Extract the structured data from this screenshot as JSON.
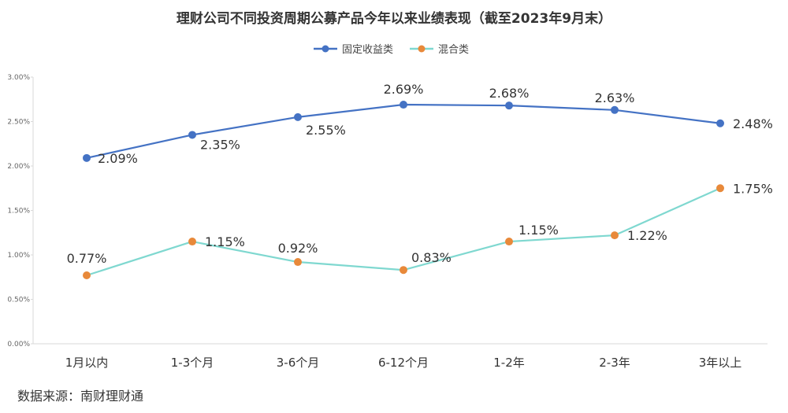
{
  "chart_data": {
    "type": "line",
    "title": "理财公司不同投资周期公募产品今年以来业绩表现（截至2023年9月末）",
    "categories": [
      "1月以内",
      "1-3个月",
      "3-6个月",
      "6-12个月",
      "1-2年",
      "2-3年",
      "3年以上"
    ],
    "series": [
      {
        "name": "固定收益类",
        "color": "#4472C4",
        "point_color": "#4472C4",
        "values": [
          2.09,
          2.35,
          2.55,
          2.69,
          2.68,
          2.63,
          2.48
        ],
        "labels": [
          "2.09%",
          "2.35%",
          "2.55%",
          "2.69%",
          "2.68%",
          "2.63%",
          "2.48%"
        ]
      },
      {
        "name": "混合类",
        "color": "#7FD8D0",
        "point_color": "#E8893A",
        "values": [
          0.77,
          1.15,
          0.92,
          0.83,
          1.15,
          1.22,
          1.75
        ],
        "labels": [
          "0.77%",
          "1.15%",
          "0.92%",
          "0.83%",
          "1.15%",
          "1.22%",
          "1.75%"
        ]
      }
    ],
    "yticks": [
      "0.00%",
      "0.50%",
      "1.00%",
      "1.50%",
      "2.00%",
      "2.50%",
      "3.00%"
    ],
    "ylim": [
      0,
      3
    ],
    "grid": false,
    "legend_position": "top-center",
    "axis_color": "#D9D9D9"
  },
  "source": "数据来源：南财理财通"
}
